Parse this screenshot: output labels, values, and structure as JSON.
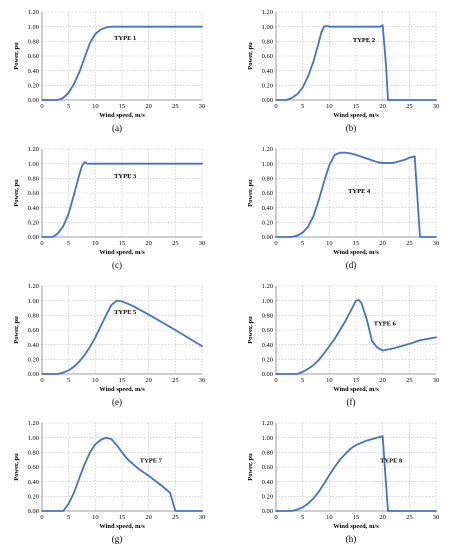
{
  "chart_data": [
    {
      "type": "line",
      "subtitle": "(a)",
      "annotation": "TYPE 1",
      "xlabel": "Wind speed, m/s",
      "ylabel": "Power, pu",
      "xlim": [
        0,
        30
      ],
      "ylim": [
        0,
        1.2
      ],
      "xticks": [
        "0",
        "5",
        "10",
        "15",
        "20",
        "25",
        "30"
      ],
      "yticks": [
        "0.00",
        "0.20",
        "0.40",
        "0.60",
        "0.80",
        "1.00",
        "1.20"
      ],
      "grid": true,
      "line_color": "#4472c4",
      "x": [
        0,
        3,
        4,
        5,
        6,
        7,
        8,
        9,
        10,
        11,
        12,
        13,
        15,
        20,
        25,
        30
      ],
      "y": [
        0,
        0,
        0.03,
        0.1,
        0.22,
        0.38,
        0.58,
        0.78,
        0.9,
        0.96,
        0.99,
        1.0,
        1.0,
        1.0,
        1.0,
        1.0
      ]
    },
    {
      "type": "line",
      "subtitle": "(b)",
      "annotation": "TYPE 2",
      "xlabel": "Wind speed, m/s",
      "ylabel": "Power, pu",
      "xlim": [
        0,
        30
      ],
      "ylim": [
        0,
        1.2
      ],
      "xticks": [
        "0",
        "5",
        "10",
        "15",
        "20",
        "25",
        "30"
      ],
      "yticks": [
        "0.00",
        "0.20",
        "0.40",
        "0.60",
        "0.80",
        "1.00",
        "1.20"
      ],
      "grid": true,
      "line_color": "#4472c4",
      "x": [
        0,
        2,
        3,
        4,
        5,
        6,
        7,
        8,
        8.5,
        9,
        9.5,
        10,
        15,
        19.5,
        20,
        20.6,
        21,
        25,
        30
      ],
      "y": [
        0,
        0,
        0.03,
        0.08,
        0.17,
        0.32,
        0.52,
        0.78,
        0.92,
        1.0,
        1.01,
        1.0,
        1.0,
        1.0,
        1.02,
        0.5,
        0,
        0,
        0
      ]
    },
    {
      "type": "line",
      "subtitle": "(c)",
      "annotation": "TYPE 3",
      "xlabel": "Wind speed, m/s",
      "ylabel": "Power, pu",
      "xlim": [
        0,
        30
      ],
      "ylim": [
        0,
        1.2
      ],
      "xticks": [
        "0",
        "5",
        "10",
        "15",
        "20",
        "25",
        "30"
      ],
      "yticks": [
        "0.00",
        "0.20",
        "0.40",
        "0.60",
        "0.80",
        "1.00",
        "1.20"
      ],
      "grid": true,
      "line_color": "#4472c4",
      "x": [
        0,
        2,
        3,
        4,
        5,
        6,
        7,
        7.5,
        8,
        8.5,
        9,
        10,
        15,
        20,
        25,
        30
      ],
      "y": [
        0,
        0,
        0.05,
        0.15,
        0.32,
        0.58,
        0.85,
        0.97,
        1.02,
        1.0,
        1.0,
        1.0,
        1.0,
        1.0,
        1.0,
        1.0
      ]
    },
    {
      "type": "line",
      "subtitle": "(d)",
      "annotation": "TYPE 4",
      "xlabel": "Wind speed, m/s",
      "ylabel": "Power, pu",
      "xlim": [
        0,
        30
      ],
      "ylim": [
        0,
        1.2
      ],
      "xticks": [
        "0",
        "5",
        "10",
        "15",
        "20",
        "25",
        "30"
      ],
      "yticks": [
        "0.00",
        "0.20",
        "0.40",
        "0.60",
        "0.80",
        "1.00",
        "1.20"
      ],
      "grid": true,
      "line_color": "#4472c4",
      "x": [
        0,
        3,
        4,
        5,
        6,
        7,
        8,
        9,
        10,
        11,
        12,
        13,
        14,
        15,
        17,
        19,
        20,
        22,
        24,
        25,
        26,
        26.5,
        27,
        28,
        30
      ],
      "y": [
        0,
        0,
        0.02,
        0.06,
        0.14,
        0.28,
        0.5,
        0.75,
        0.98,
        1.12,
        1.15,
        1.15,
        1.14,
        1.12,
        1.07,
        1.02,
        1.01,
        1.01,
        1.05,
        1.08,
        1.1,
        0.55,
        0,
        0,
        0
      ]
    },
    {
      "type": "line",
      "subtitle": "(e)",
      "annotation": "TYPE 5",
      "xlabel": "Wind speed, m/s",
      "ylabel": "Power, pu",
      "xlim": [
        0,
        30
      ],
      "ylim": [
        0,
        1.2
      ],
      "xticks": [
        "0",
        "5",
        "10",
        "15",
        "20",
        "25",
        "30"
      ],
      "yticks": [
        "0.00",
        "0.20",
        "0.40",
        "0.60",
        "0.80",
        "1.00",
        "1.20"
      ],
      "grid": true,
      "line_color": "#4472c4",
      "x": [
        0,
        3,
        4,
        5,
        6,
        7,
        8,
        9,
        10,
        11,
        12,
        13,
        14,
        15,
        17,
        20,
        25,
        30
      ],
      "y": [
        0,
        0,
        0.02,
        0.05,
        0.1,
        0.17,
        0.26,
        0.37,
        0.5,
        0.65,
        0.8,
        0.94,
        1.0,
        0.99,
        0.93,
        0.81,
        0.6,
        0.38
      ]
    },
    {
      "type": "line",
      "subtitle": "(f)",
      "annotation": "TYPE 6",
      "xlabel": "Wind speed, m/s",
      "ylabel": "Power, pu",
      "xlim": [
        0,
        30
      ],
      "ylim": [
        0,
        1.2
      ],
      "xticks": [
        "0",
        "5",
        "10",
        "15",
        "20",
        "25",
        "30"
      ],
      "yticks": [
        "0.00",
        "0.20",
        "0.40",
        "0.60",
        "0.80",
        "1.00",
        "1.20"
      ],
      "grid": true,
      "line_color": "#4472c4",
      "x": [
        0,
        4,
        5,
        6,
        7,
        8,
        9,
        10,
        11,
        12,
        13,
        14,
        15,
        15.5,
        16,
        17,
        18,
        19,
        20,
        22,
        25,
        27,
        30
      ],
      "y": [
        0,
        0,
        0.03,
        0.07,
        0.12,
        0.19,
        0.28,
        0.38,
        0.48,
        0.6,
        0.72,
        0.86,
        1.0,
        1.01,
        0.97,
        0.75,
        0.45,
        0.36,
        0.32,
        0.35,
        0.41,
        0.46,
        0.5
      ]
    },
    {
      "type": "line",
      "subtitle": "(g)",
      "annotation": "TYPE 7",
      "xlabel": "Wind speed, m/s",
      "ylabel": "Power, pu",
      "xlim": [
        0,
        30
      ],
      "ylim": [
        0,
        1.2
      ],
      "xticks": [
        "0",
        "5",
        "10",
        "15",
        "20",
        "25",
        "30"
      ],
      "yticks": [
        "0.00",
        "0.20",
        "0.40",
        "0.60",
        "0.80",
        "1.00",
        "1.20"
      ],
      "grid": true,
      "line_color": "#4472c4",
      "x": [
        0,
        4,
        5,
        6,
        7,
        8,
        9,
        10,
        11,
        12,
        13,
        14,
        15,
        16,
        18,
        20,
        22,
        24,
        25,
        26,
        30
      ],
      "y": [
        0,
        0,
        0.1,
        0.25,
        0.45,
        0.64,
        0.8,
        0.91,
        0.97,
        1.0,
        0.98,
        0.9,
        0.8,
        0.71,
        0.58,
        0.48,
        0.37,
        0.25,
        0,
        0,
        0
      ]
    },
    {
      "type": "line",
      "subtitle": "(h)",
      "annotation": "TYPE 8",
      "xlabel": "Wind speed, m/s",
      "ylabel": "Power, pu",
      "xlim": [
        0,
        30
      ],
      "ylim": [
        0,
        1.2
      ],
      "xticks": [
        "0",
        "5",
        "10",
        "15",
        "20",
        "25",
        "30"
      ],
      "yticks": [
        "0.00",
        "0.20",
        "0.40",
        "0.60",
        "0.80",
        "1.00",
        "1.20"
      ],
      "grid": true,
      "line_color": "#4472c4",
      "x": [
        0,
        3,
        4,
        5,
        6,
        7,
        8,
        9,
        10,
        11,
        12,
        13,
        14,
        15,
        16,
        17,
        18,
        19,
        20,
        20.5,
        21,
        25,
        30
      ],
      "y": [
        0,
        0,
        0.02,
        0.05,
        0.1,
        0.17,
        0.26,
        0.37,
        0.49,
        0.6,
        0.7,
        0.78,
        0.85,
        0.9,
        0.93,
        0.96,
        0.98,
        1.0,
        1.02,
        0.5,
        0,
        0,
        0
      ]
    }
  ]
}
